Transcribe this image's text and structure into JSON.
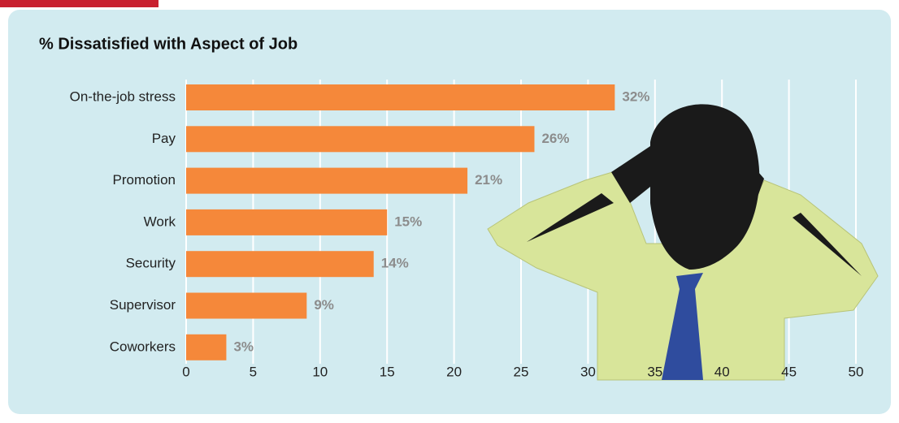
{
  "chart_data": {
    "type": "bar",
    "orientation": "horizontal",
    "title": "% Dissatisfied with Aspect of Job",
    "categories": [
      "On-the-job stress",
      "Pay",
      "Promotion",
      "Work",
      "Security",
      "Supervisor",
      "Coworkers"
    ],
    "values": [
      32,
      26,
      21,
      15,
      14,
      9,
      3
    ],
    "value_labels": [
      "32%",
      "26%",
      "21%",
      "15%",
      "14%",
      "9%",
      "3%"
    ],
    "color": "#f5883a",
    "xlim": [
      0,
      50
    ],
    "xticks": [
      0,
      5,
      10,
      15,
      20,
      25,
      30,
      35,
      40,
      45,
      50
    ],
    "grid": true
  }
}
